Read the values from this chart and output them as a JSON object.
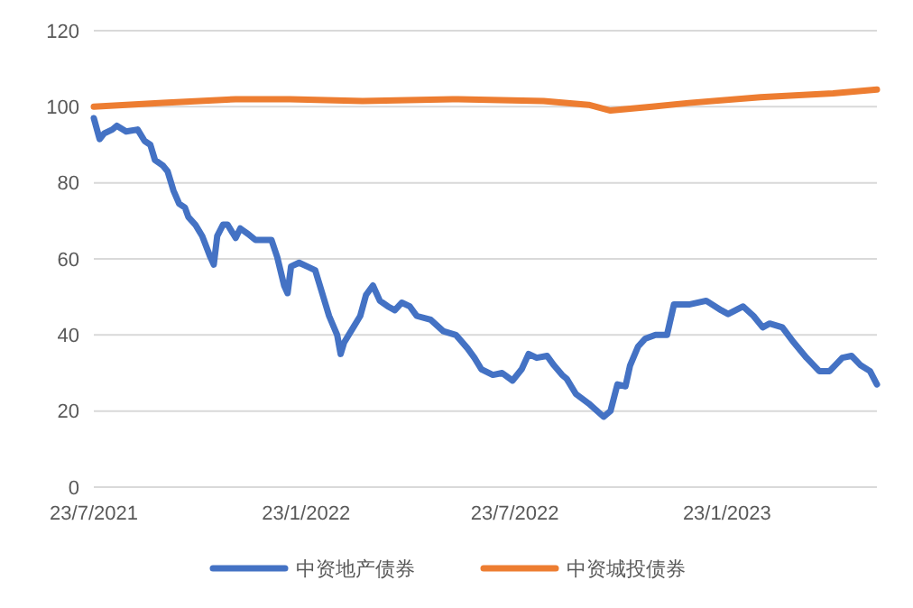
{
  "chart_data": {
    "type": "line",
    "xlim": [
      "2021-07-23",
      "2023-06-02"
    ],
    "xticks": [
      {
        "value": "2021-07-23",
        "label": "23/7/2021"
      },
      {
        "value": "2022-01-23",
        "label": "23/1/2022"
      },
      {
        "value": "2022-07-23",
        "label": "23/7/2022"
      },
      {
        "value": "2023-01-23",
        "label": "23/1/2023"
      }
    ],
    "ylim": [
      0,
      120
    ],
    "yticks": [
      0,
      20,
      40,
      60,
      80,
      100,
      120
    ],
    "grid": "y",
    "legend": "bottom",
    "marker": "none",
    "line_style": "solid",
    "series": [
      {
        "name": "中资地产债券",
        "color": "#4472c4",
        "x": [
          "2021-07-23",
          "2021-07-28",
          "2021-08-01",
          "2021-08-08",
          "2021-08-12",
          "2021-08-20",
          "2021-08-30",
          "2021-09-05",
          "2021-09-10",
          "2021-09-14",
          "2021-09-21",
          "2021-09-25",
          "2021-09-30",
          "2021-10-05",
          "2021-10-10",
          "2021-10-13",
          "2021-10-19",
          "2021-10-25",
          "2021-11-01",
          "2021-11-04",
          "2021-11-07",
          "2021-11-12",
          "2021-11-16",
          "2021-11-23",
          "2021-11-27",
          "2021-12-04",
          "2021-12-10",
          "2021-12-24",
          "2021-12-29",
          "2022-01-04",
          "2022-01-07",
          "2022-01-10",
          "2022-01-17",
          "2022-01-24",
          "2022-01-31",
          "2022-02-05",
          "2022-02-12",
          "2022-02-19",
          "2022-02-22",
          "2022-02-25",
          "2022-03-05",
          "2022-03-11",
          "2022-03-16",
          "2022-03-22",
          "2022-03-28",
          "2022-04-04",
          "2022-04-10",
          "2022-04-16",
          "2022-04-23",
          "2022-04-29",
          "2022-05-11",
          "2022-05-22",
          "2022-06-02",
          "2022-06-12",
          "2022-06-18",
          "2022-06-24",
          "2022-07-04",
          "2022-07-12",
          "2022-07-21",
          "2022-07-29",
          "2022-08-04",
          "2022-08-11",
          "2022-08-20",
          "2022-08-26",
          "2022-09-02",
          "2022-09-06",
          "2022-09-14",
          "2022-09-25",
          "2022-10-08",
          "2022-10-14",
          "2022-10-20",
          "2022-10-27",
          "2022-10-31",
          "2022-11-07",
          "2022-11-13",
          "2022-11-22",
          "2022-12-02",
          "2022-12-08",
          "2022-12-21",
          "2023-01-05",
          "2023-01-18",
          "2023-01-24",
          "2023-02-06",
          "2023-02-15",
          "2023-02-23",
          "2023-03-01",
          "2023-03-12",
          "2023-03-22",
          "2023-04-02",
          "2023-04-13",
          "2023-04-22",
          "2023-05-03",
          "2023-05-11",
          "2023-05-19",
          "2023-05-27",
          "2023-06-02"
        ],
        "values": [
          97,
          91.5,
          93,
          94,
          95,
          93.5,
          94,
          91,
          90,
          86,
          84.5,
          83,
          78,
          74.5,
          73.5,
          71,
          69,
          66,
          60.5,
          58.5,
          66,
          69,
          69,
          65.5,
          68,
          66.5,
          65,
          65,
          60.5,
          53,
          51,
          58,
          59,
          58,
          57,
          52,
          45,
          40,
          35,
          38,
          42,
          45,
          50.5,
          53,
          49,
          47.5,
          46.5,
          48.5,
          47.5,
          45,
          44,
          41,
          40,
          36.5,
          34,
          31,
          29.5,
          30,
          28,
          31,
          35,
          34,
          34.5,
          32,
          29.5,
          28.5,
          24.5,
          22,
          18.5,
          20,
          27,
          26.5,
          32,
          37,
          39,
          40,
          40,
          48,
          48,
          49,
          46.5,
          45.5,
          47.5,
          45,
          42,
          43,
          42,
          38,
          34,
          30.5,
          30.5,
          34,
          34.5,
          32,
          30.5,
          27
        ]
      },
      {
        "name": "中资城投债券",
        "color": "#ed7d31",
        "x": [
          "2021-07-23",
          "2021-09-21",
          "2021-11-23",
          "2022-01-09",
          "2022-03-13",
          "2022-05-30",
          "2022-08-17",
          "2022-09-25",
          "2022-10-14",
          "2022-11-19",
          "2022-12-21",
          "2023-02-21",
          "2023-04-25",
          "2023-06-02"
        ],
        "values": [
          100,
          101,
          102,
          102,
          101.5,
          102,
          101.5,
          100.5,
          99,
          100,
          101,
          102.5,
          103.5,
          104.5
        ]
      }
    ]
  }
}
